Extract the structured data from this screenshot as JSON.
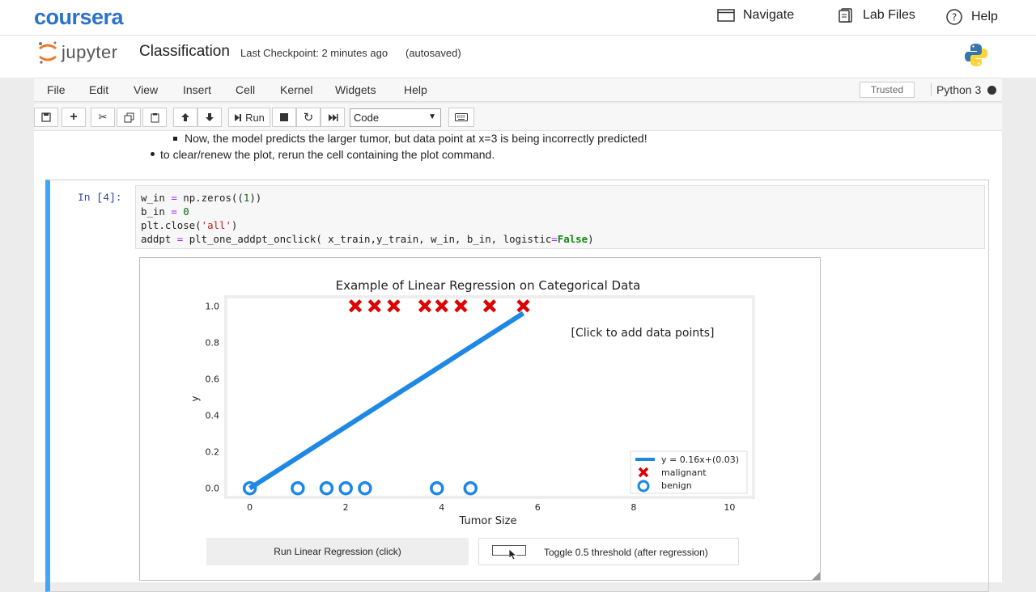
{
  "coursera": {
    "logo": "coursera",
    "nav": [
      {
        "label": "Navigate",
        "icon": "browser-window-icon"
      },
      {
        "label": "Lab Files",
        "icon": "files-icon"
      },
      {
        "label": "Help",
        "icon": "question-circle-icon"
      }
    ]
  },
  "jupyter": {
    "logo_text": "jupyter",
    "notebook_title": "Classification",
    "checkpoint": "Last Checkpoint: 2 minutes ago",
    "autosaved": "(autosaved)"
  },
  "menu": {
    "items": [
      "File",
      "Edit",
      "View",
      "Insert",
      "Cell",
      "Kernel",
      "Widgets",
      "Help"
    ],
    "trusted": "Trusted",
    "kernel": "Python 3"
  },
  "toolbar": {
    "run_label": "Run",
    "cell_type": "Code"
  },
  "markdown": {
    "line1": "Now, the model predicts the larger tumor, but data point at x=3 is being incorrectly predicted!",
    "line2": "to clear/renew the plot, rerun the cell containing the plot command."
  },
  "cell": {
    "prompt": "In [4]:",
    "code": {
      "l1a": "w_in ",
      "l1b": "=",
      "l1c": " np.zeros((",
      "l1d": "1",
      "l1e": "))",
      "l2a": "b_in ",
      "l2b": "=",
      "l2c": " ",
      "l2d": "0",
      "l3a": "plt.close(",
      "l3b": "'all'",
      "l3c": ")",
      "l4a": "addpt ",
      "l4b": "=",
      "l4c": " plt_one_addpt_onclick( x_train,y_train, w_in, b_in, logistic",
      "l4d": "=",
      "l4e": "False",
      "l4f": ")"
    }
  },
  "widgets": {
    "regress_button": "Run Linear Regression (click)",
    "toggle_label": "Toggle 0.5 threshold (after regression)"
  },
  "chart_data": {
    "type": "scatter",
    "title": "Example of Linear Regression on Categorical Data",
    "xlabel": "Tumor Size",
    "ylabel": "y",
    "xlim": [
      -0.5,
      10.5
    ],
    "ylim": [
      -0.05,
      1.05
    ],
    "xticks": [
      0,
      2,
      4,
      6,
      8,
      10
    ],
    "yticks": [
      0.0,
      0.2,
      0.4,
      0.6,
      0.8,
      1.0
    ],
    "ytick_labels": [
      "0.0",
      "0.2",
      "0.4",
      "0.6",
      "0.8",
      "1.0"
    ],
    "annotation": "[Click to add data points]",
    "grid": false,
    "legend": "bottom-right",
    "series": [
      {
        "name": "malignant",
        "marker": "x",
        "color": "#dd0000",
        "x": [
          2.2,
          2.6,
          3.0,
          3.65,
          4.0,
          4.4,
          5.0,
          5.7
        ],
        "y": [
          1,
          1,
          1,
          1,
          1,
          1,
          1,
          1
        ]
      },
      {
        "name": "benign",
        "marker": "o",
        "color": "#1e88e5",
        "x": [
          0.0,
          1.0,
          1.6,
          2.0,
          2.4,
          3.9,
          4.6
        ],
        "y": [
          0,
          0,
          0,
          0,
          0,
          0,
          0
        ]
      }
    ],
    "fit_line": {
      "name": "y = 0.16x+(0.03)",
      "x": [
        0.0,
        5.7
      ],
      "y": [
        0.0,
        0.96
      ],
      "color": "#1e88e5"
    }
  }
}
